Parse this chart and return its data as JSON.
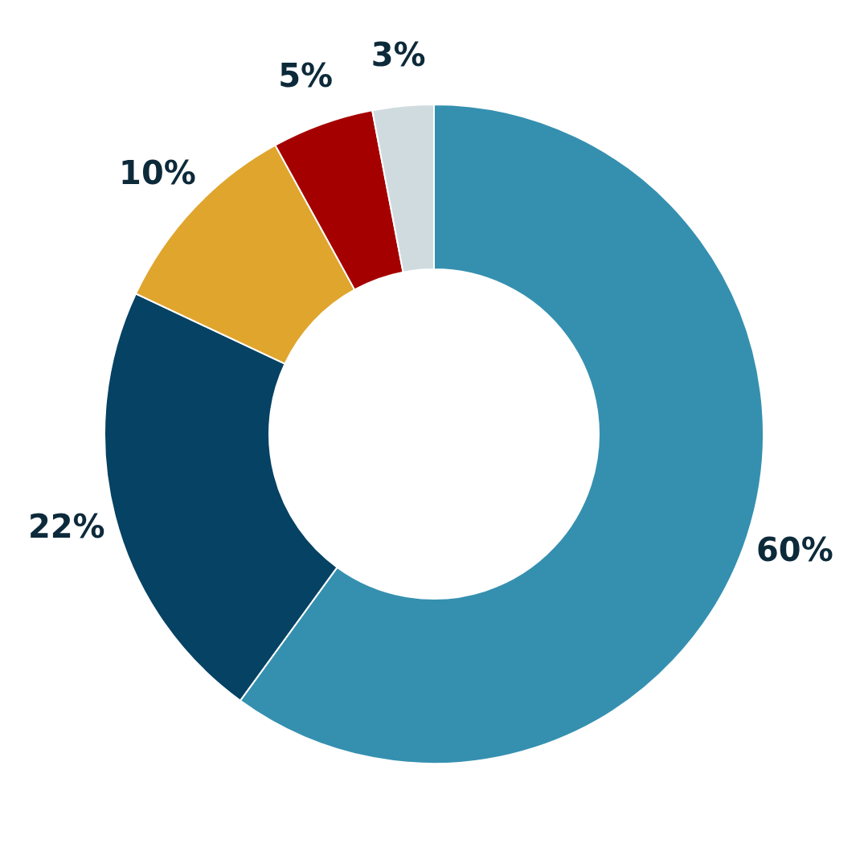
{
  "chart_data": {
    "type": "donut",
    "categories": [
      null,
      null,
      null,
      null,
      null
    ],
    "values": [
      60,
      22,
      10,
      5,
      3
    ],
    "colors": [
      "#3590b0",
      "#054263",
      "#e0a52c",
      "#a50000",
      "#cfdbdf"
    ],
    "value_labels": [
      "60%",
      "22%",
      "10%",
      "5%",
      "3%"
    ]
  }
}
